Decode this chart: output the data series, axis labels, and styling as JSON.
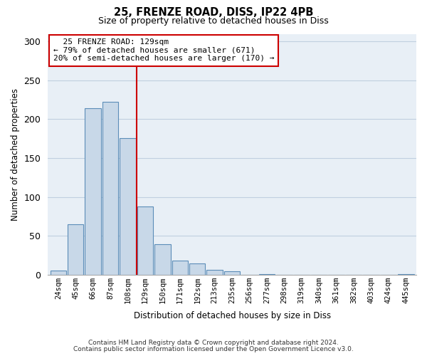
{
  "title1": "25, FRENZE ROAD, DISS, IP22 4PB",
  "title2": "Size of property relative to detached houses in Diss",
  "xlabel": "Distribution of detached houses by size in Diss",
  "ylabel": "Number of detached properties",
  "bar_labels": [
    "24sqm",
    "45sqm",
    "66sqm",
    "87sqm",
    "108sqm",
    "129sqm",
    "150sqm",
    "171sqm",
    "192sqm",
    "213sqm",
    "235sqm",
    "256sqm",
    "277sqm",
    "298sqm",
    "319sqm",
    "340sqm",
    "361sqm",
    "382sqm",
    "403sqm",
    "424sqm",
    "445sqm"
  ],
  "bar_values": [
    5,
    65,
    214,
    222,
    176,
    88,
    39,
    18,
    14,
    6,
    4,
    0,
    1,
    0,
    0,
    0,
    0,
    0,
    0,
    0,
    1
  ],
  "bar_color": "#c8d8e8",
  "bar_edge_color": "#5b8db8",
  "vline_color": "#cc0000",
  "annotation_title": "25 FRENZE ROAD: 129sqm",
  "annotation_line1": "← 79% of detached houses are smaller (671)",
  "annotation_line2": "20% of semi-detached houses are larger (170) →",
  "annotation_box_color": "#ffffff",
  "annotation_box_edge": "#cc0000",
  "ylim": [
    0,
    310
  ],
  "bg_color": "#e8eff6",
  "grid_color": "#c0cfe0",
  "footnote1": "Contains HM Land Registry data © Crown copyright and database right 2024.",
  "footnote2": "Contains public sector information licensed under the Open Government Licence v3.0."
}
